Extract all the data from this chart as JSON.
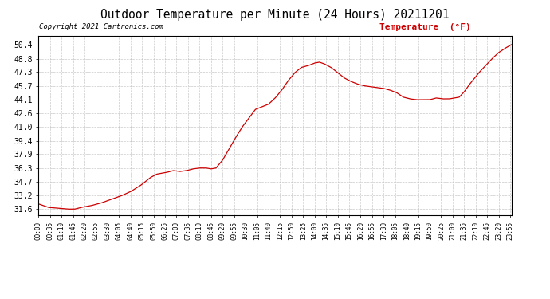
{
  "title": "Outdoor Temperature per Minute (24 Hours) 20211201",
  "copyright_text": "Copyright 2021 Cartronics.com",
  "legend_label": "Temperature  (°F)",
  "line_color": "#cc0000",
  "background_color": "#ffffff",
  "grid_color": "#bbbbbb",
  "yticks": [
    31.6,
    33.2,
    34.7,
    36.3,
    37.9,
    39.4,
    41.0,
    42.6,
    44.1,
    45.7,
    47.3,
    48.8,
    50.4
  ],
  "ylim": [
    30.9,
    51.4
  ],
  "xtick_labels": [
    "00:00",
    "00:35",
    "01:10",
    "01:45",
    "02:20",
    "02:55",
    "03:30",
    "04:05",
    "04:40",
    "05:15",
    "05:50",
    "06:25",
    "07:00",
    "07:35",
    "08:10",
    "08:45",
    "09:20",
    "09:55",
    "10:30",
    "11:05",
    "11:40",
    "12:15",
    "12:50",
    "13:25",
    "14:00",
    "14:35",
    "15:10",
    "15:45",
    "16:20",
    "16:55",
    "17:30",
    "18:05",
    "18:40",
    "19:15",
    "19:50",
    "20:25",
    "21:00",
    "21:35",
    "22:10",
    "22:45",
    "23:20",
    "23:55"
  ],
  "num_minutes": 1440,
  "key_points": [
    [
      0,
      32.2
    ],
    [
      30,
      31.8
    ],
    [
      60,
      31.7
    ],
    [
      90,
      31.6
    ],
    [
      110,
      31.6
    ],
    [
      130,
      31.8
    ],
    [
      160,
      32.0
    ],
    [
      190,
      32.3
    ],
    [
      220,
      32.7
    ],
    [
      250,
      33.1
    ],
    [
      280,
      33.6
    ],
    [
      310,
      34.3
    ],
    [
      340,
      35.2
    ],
    [
      360,
      35.6
    ],
    [
      390,
      35.8
    ],
    [
      410,
      36.0
    ],
    [
      430,
      35.9
    ],
    [
      450,
      36.0
    ],
    [
      460,
      36.1
    ],
    [
      470,
      36.2
    ],
    [
      490,
      36.3
    ],
    [
      510,
      36.3
    ],
    [
      525,
      36.2
    ],
    [
      540,
      36.3
    ],
    [
      560,
      37.2
    ],
    [
      580,
      38.5
    ],
    [
      600,
      39.8
    ],
    [
      620,
      41.0
    ],
    [
      640,
      42.0
    ],
    [
      660,
      43.0
    ],
    [
      680,
      43.3
    ],
    [
      700,
      43.6
    ],
    [
      720,
      44.3
    ],
    [
      740,
      45.2
    ],
    [
      760,
      46.3
    ],
    [
      780,
      47.2
    ],
    [
      800,
      47.8
    ],
    [
      820,
      48.0
    ],
    [
      840,
      48.3
    ],
    [
      855,
      48.4
    ],
    [
      870,
      48.2
    ],
    [
      890,
      47.8
    ],
    [
      910,
      47.2
    ],
    [
      930,
      46.6
    ],
    [
      950,
      46.2
    ],
    [
      970,
      45.9
    ],
    [
      990,
      45.7
    ],
    [
      1010,
      45.6
    ],
    [
      1030,
      45.5
    ],
    [
      1050,
      45.4
    ],
    [
      1070,
      45.2
    ],
    [
      1090,
      44.9
    ],
    [
      1110,
      44.4
    ],
    [
      1130,
      44.2
    ],
    [
      1150,
      44.1
    ],
    [
      1170,
      44.1
    ],
    [
      1190,
      44.1
    ],
    [
      1210,
      44.3
    ],
    [
      1230,
      44.2
    ],
    [
      1250,
      44.2
    ],
    [
      1265,
      44.3
    ],
    [
      1280,
      44.4
    ],
    [
      1295,
      45.0
    ],
    [
      1310,
      45.8
    ],
    [
      1325,
      46.5
    ],
    [
      1340,
      47.2
    ],
    [
      1360,
      48.0
    ],
    [
      1380,
      48.8
    ],
    [
      1400,
      49.5
    ],
    [
      1420,
      50.0
    ],
    [
      1439,
      50.4
    ]
  ]
}
